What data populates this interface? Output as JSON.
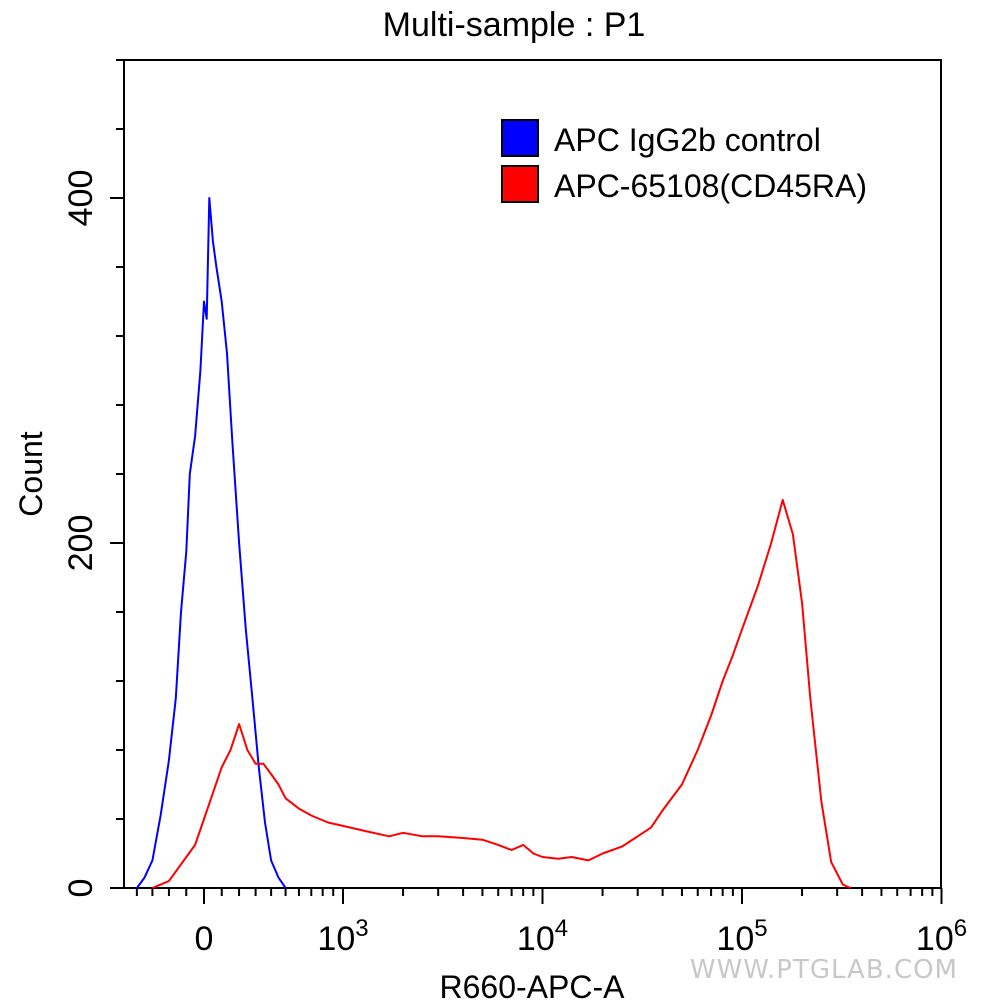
{
  "chart_data": {
    "type": "area",
    "title": "Multi-sample : P1",
    "xlabel": "R660-APC-A",
    "ylabel": "Count",
    "x_scale": "biexponential",
    "x_ticks": [
      {
        "value": 0,
        "base": "0",
        "exp": ""
      },
      {
        "value": 1000,
        "base": "10",
        "exp": "3"
      },
      {
        "value": 10000,
        "base": "10",
        "exp": "4"
      },
      {
        "value": 100000,
        "base": "10",
        "exp": "5"
      },
      {
        "value": 1000000,
        "base": "10",
        "exp": "6"
      }
    ],
    "y_ticks": [
      0,
      200,
      400
    ],
    "ylim": [
      0,
      480
    ],
    "grid": false,
    "legend_position": "top-right",
    "series": [
      {
        "name": "APC IgG2b control",
        "color": "#0000ff",
        "points": [
          [
            -400,
            0
          ],
          [
            -350,
            6
          ],
          [
            -300,
            16
          ],
          [
            -250,
            42
          ],
          [
            -200,
            74
          ],
          [
            -160,
            110
          ],
          [
            -130,
            160
          ],
          [
            -100,
            195
          ],
          [
            -80,
            240
          ],
          [
            -50,
            262
          ],
          [
            -20,
            300
          ],
          [
            0,
            340
          ],
          [
            15,
            330
          ],
          [
            30,
            400
          ],
          [
            50,
            375
          ],
          [
            70,
            360
          ],
          [
            100,
            340
          ],
          [
            130,
            310
          ],
          [
            160,
            260
          ],
          [
            200,
            200
          ],
          [
            240,
            150
          ],
          [
            280,
            110
          ],
          [
            320,
            70
          ],
          [
            360,
            38
          ],
          [
            400,
            16
          ],
          [
            450,
            6
          ],
          [
            500,
            0
          ]
        ]
      },
      {
        "name": "APC-65108(CD45RA)",
        "color": "#ff0000",
        "points": [
          [
            -300,
            0
          ],
          [
            -200,
            4
          ],
          [
            -100,
            18
          ],
          [
            -50,
            25
          ],
          [
            0,
            40
          ],
          [
            50,
            55
          ],
          [
            100,
            70
          ],
          [
            150,
            80
          ],
          [
            200,
            95
          ],
          [
            250,
            80
          ],
          [
            300,
            72
          ],
          [
            350,
            72
          ],
          [
            400,
            66
          ],
          [
            450,
            60
          ],
          [
            500,
            52
          ],
          [
            600,
            46
          ],
          [
            700,
            42
          ],
          [
            850,
            38
          ],
          [
            1000,
            36
          ],
          [
            1300,
            33
          ],
          [
            1700,
            30
          ],
          [
            2000,
            32
          ],
          [
            2500,
            30
          ],
          [
            3000,
            30
          ],
          [
            4000,
            29
          ],
          [
            5000,
            28
          ],
          [
            6000,
            25
          ],
          [
            7000,
            22
          ],
          [
            8000,
            25
          ],
          [
            9000,
            20
          ],
          [
            10000,
            18
          ],
          [
            12000,
            17
          ],
          [
            14000,
            18
          ],
          [
            17000,
            16
          ],
          [
            20000,
            20
          ],
          [
            25000,
            24
          ],
          [
            30000,
            30
          ],
          [
            35000,
            35
          ],
          [
            40000,
            45
          ],
          [
            50000,
            60
          ],
          [
            60000,
            80
          ],
          [
            70000,
            100
          ],
          [
            80000,
            120
          ],
          [
            90000,
            135
          ],
          [
            100000,
            150
          ],
          [
            120000,
            175
          ],
          [
            140000,
            200
          ],
          [
            160000,
            225
          ],
          [
            180000,
            205
          ],
          [
            200000,
            165
          ],
          [
            220000,
            110
          ],
          [
            250000,
            50
          ],
          [
            280000,
            15
          ],
          [
            320000,
            2
          ],
          [
            350000,
            0
          ]
        ]
      }
    ]
  },
  "watermark": "WWW.PTGLAB.COM"
}
